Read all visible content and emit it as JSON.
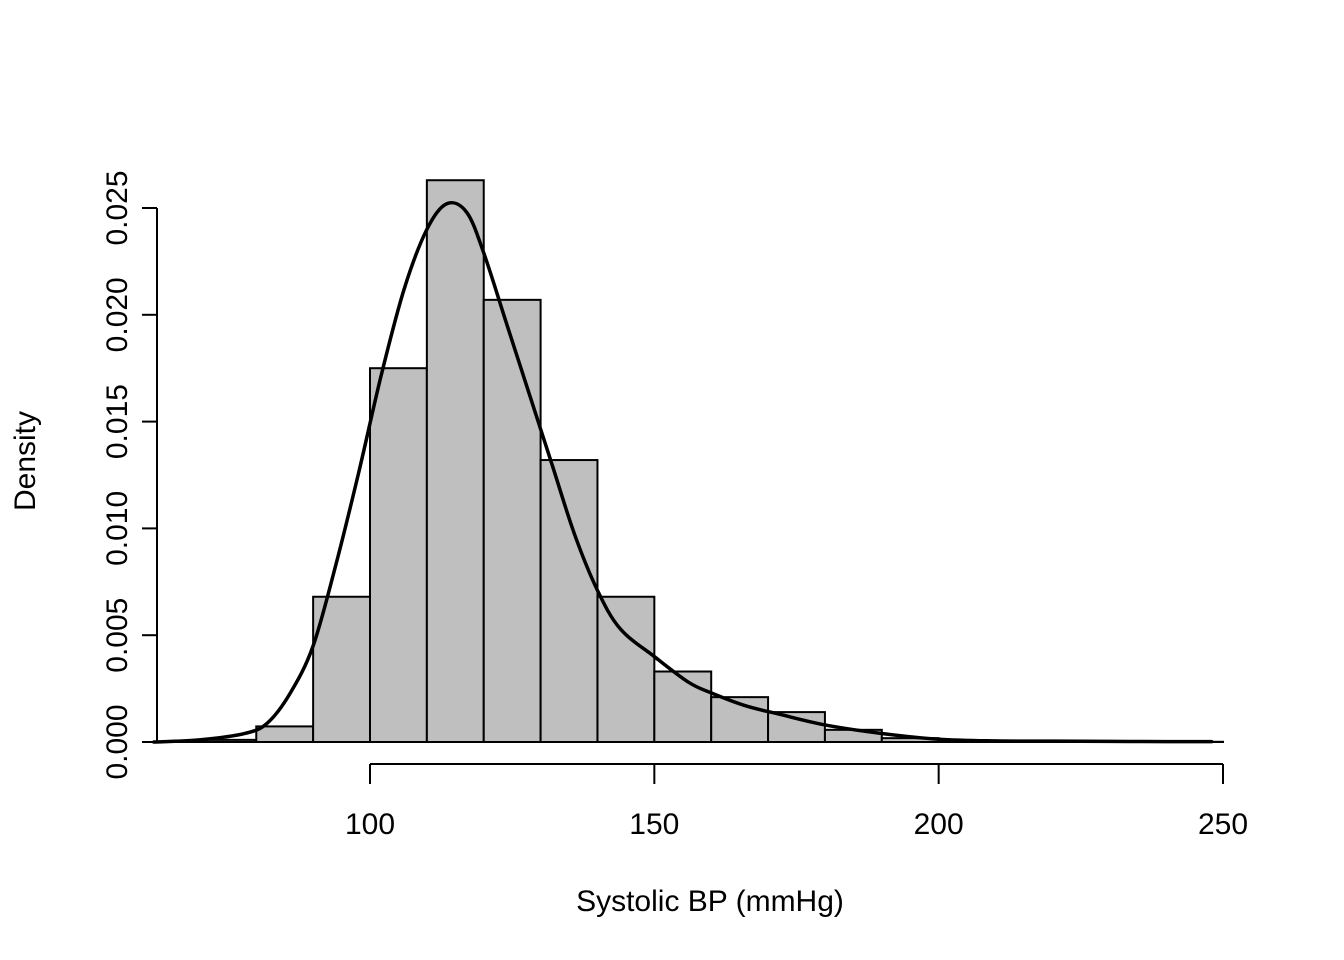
{
  "chart_data": {
    "type": "bar",
    "title": "",
    "xlabel": "Systolic BP (mmHg)",
    "ylabel": "Density",
    "xlim": [
      62,
      250
    ],
    "ylim": [
      0,
      0.0265
    ],
    "bar_color": "#bfbfbf",
    "line_color": "#000000",
    "grid": false,
    "x_ticks": [
      100,
      150,
      200,
      250
    ],
    "x_tick_labels": [
      "100",
      "150",
      "200",
      "250"
    ],
    "y_ticks": [
      0,
      0.005,
      0.01,
      0.015,
      0.02,
      0.025
    ],
    "y_tick_labels": [
      "0.000",
      "0.005",
      "0.010",
      "0.015",
      "0.020",
      "0.025"
    ],
    "bins": [
      {
        "x0": 70,
        "x1": 80,
        "density": 0.0001
      },
      {
        "x0": 80,
        "x1": 90,
        "density": 0.00073
      },
      {
        "x0": 90,
        "x1": 100,
        "density": 0.0068
      },
      {
        "x0": 100,
        "x1": 110,
        "density": 0.0175
      },
      {
        "x0": 110,
        "x1": 120,
        "density": 0.0263
      },
      {
        "x0": 120,
        "x1": 130,
        "density": 0.0207
      },
      {
        "x0": 130,
        "x1": 140,
        "density": 0.0132
      },
      {
        "x0": 140,
        "x1": 150,
        "density": 0.0068
      },
      {
        "x0": 150,
        "x1": 160,
        "density": 0.0033
      },
      {
        "x0": 160,
        "x1": 170,
        "density": 0.0021
      },
      {
        "x0": 170,
        "x1": 180,
        "density": 0.0014
      },
      {
        "x0": 180,
        "x1": 190,
        "density": 0.00057
      },
      {
        "x0": 190,
        "x1": 200,
        "density": 0.00018
      },
      {
        "x0": 200,
        "x1": 210,
        "density": 4e-05
      },
      {
        "x0": 210,
        "x1": 220,
        "density": 2e-05
      },
      {
        "x0": 220,
        "x1": 230,
        "density": 2e-05
      },
      {
        "x0": 230,
        "x1": 240,
        "density": 1e-05
      },
      {
        "x0": 240,
        "x1": 250,
        "density": 1e-05
      }
    ],
    "density_curve": {
      "x": [
        62,
        70,
        78,
        82,
        86,
        90,
        94,
        98,
        102,
        106,
        110,
        113.5,
        117,
        120,
        124,
        128,
        132,
        136,
        140,
        144,
        150,
        156,
        160,
        166,
        172,
        180,
        190,
        200,
        210,
        220,
        230,
        240,
        248
      ],
      "y": [
        0.0,
        0.0001,
        0.0004,
        0.0009,
        0.0023,
        0.0045,
        0.0083,
        0.0126,
        0.0172,
        0.0212,
        0.024,
        0.0252,
        0.0248,
        0.0229,
        0.0196,
        0.0163,
        0.013,
        0.0097,
        0.0071,
        0.0053,
        0.004,
        0.0028,
        0.0023,
        0.0017,
        0.0013,
        0.0008,
        0.0004,
        0.00013,
        5e-05,
        4e-05,
        3e-05,
        2e-05,
        2e-05
      ]
    }
  }
}
